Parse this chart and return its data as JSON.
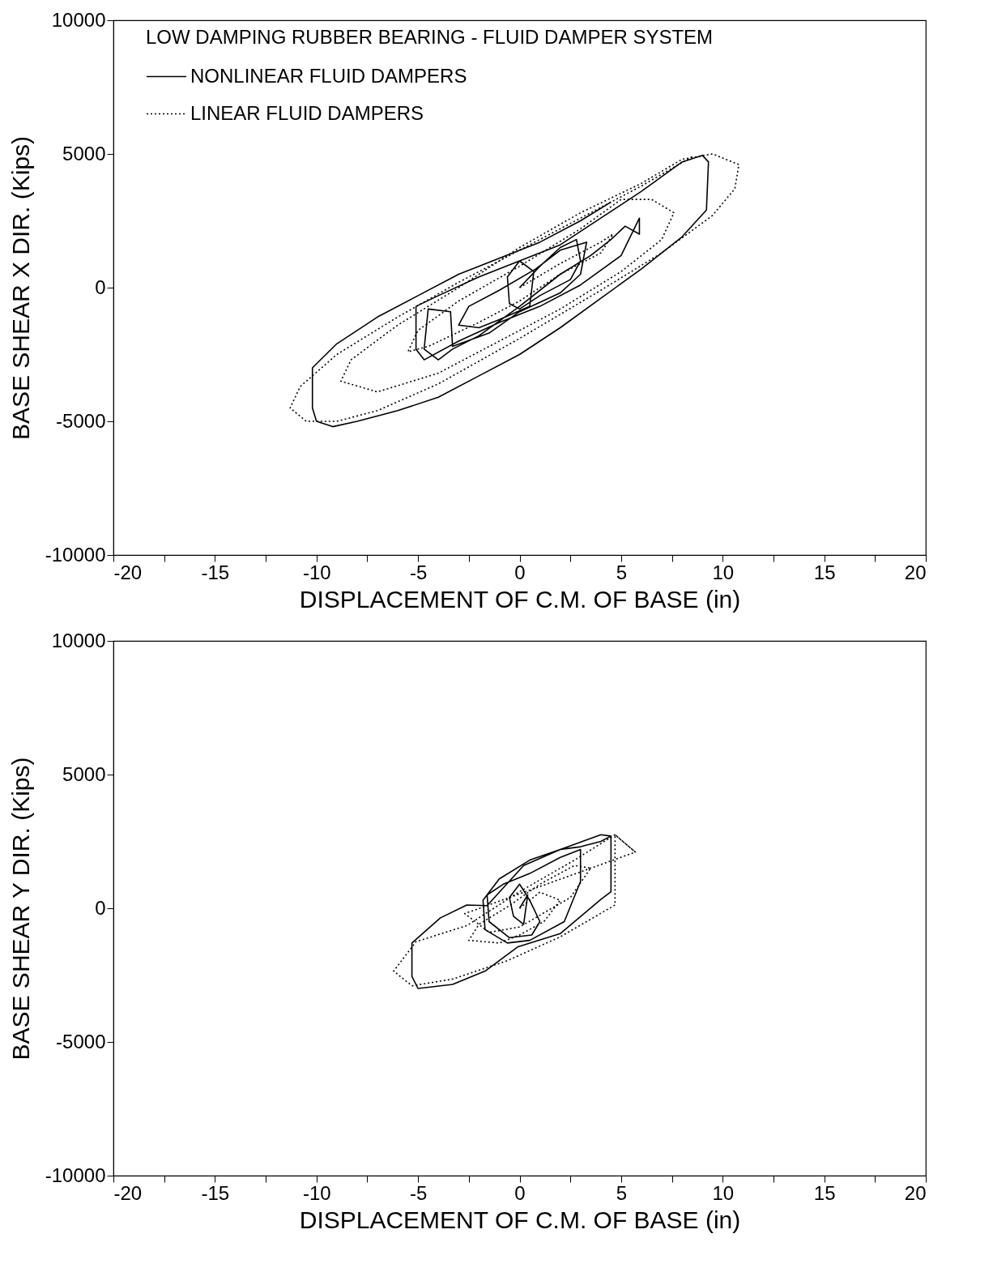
{
  "chart_data": [
    {
      "type": "line",
      "legend_title": "LOW DAMPING RUBBER BEARING - FLUID DAMPER SYSTEM",
      "legend": "top",
      "xlabel": "DISPLACEMENT  OF C.M. OF BASE (in)",
      "ylabel": "BASE SHEAR  X DIR. (Kips)",
      "xlim": [
        -20,
        20
      ],
      "ylim": [
        -10000,
        10000
      ],
      "xticks": [
        -20,
        {
          "value": -17.5,
          "label": null
        },
        -15,
        {
          "value": -12.5,
          "label": null
        },
        -10,
        {
          "value": -7.5,
          "label": null
        },
        -5,
        {
          "value": -2.5,
          "label": null
        },
        0,
        {
          "value": 2.5,
          "label": null
        },
        5,
        {
          "value": 7.5,
          "label": null
        },
        10,
        {
          "value": 12.5,
          "label": null
        },
        15,
        {
          "value": 17.5,
          "label": null
        },
        20
      ],
      "yticks": [
        -10000,
        -5000,
        0,
        5000,
        10000
      ],
      "grid": false,
      "marker": "none",
      "series": [
        {
          "name": "NONLINEAR FLUID DAMPERS",
          "color": "#000000",
          "line_style": "solid",
          "x": [
            0,
            1,
            2,
            2.8,
            3,
            2.5,
            1,
            0,
            -0.5,
            -0.6,
            0,
            0.7,
            0.5,
            -1,
            -2,
            -3,
            -2.5,
            -1,
            0.8,
            2,
            3.3,
            3,
            2,
            0,
            -1.5,
            -3.3,
            -3.4,
            -4.5,
            -4.7,
            -4,
            -3.3,
            -2,
            0,
            2,
            3.5,
            4.5,
            5.2,
            5.9,
            5.9,
            5,
            3,
            1,
            -1,
            -3,
            -4.7,
            -5.1,
            -5.1,
            -4,
            -2,
            0,
            2,
            4,
            6,
            8,
            9,
            9.3,
            9.2,
            8,
            6,
            4,
            2,
            0,
            -2,
            -4,
            -6,
            -8,
            -9.2,
            -10,
            -10.2,
            -10.2,
            -9,
            -7,
            -5,
            -3,
            -1,
            1,
            3,
            4.5
          ],
          "values": [
            0,
            800,
            1500,
            1800,
            1000,
            300,
            -300,
            -800,
            -600,
            400,
            1000,
            600,
            -700,
            -1200,
            -1500,
            -1400,
            -700,
            -100,
            700,
            1400,
            1700,
            500,
            -200,
            -900,
            -1700,
            -2200,
            -900,
            -800,
            -2300,
            -2700,
            -2300,
            -1800,
            -700,
            500,
            1200,
            1800,
            2300,
            2000,
            2600,
            1200,
            100,
            -700,
            -1300,
            -2000,
            -2700,
            -2300,
            -700,
            -300,
            400,
            1000,
            1600,
            2600,
            3600,
            4700,
            4950,
            4700,
            2900,
            1900,
            700,
            -400,
            -1500,
            -2500,
            -3300,
            -4100,
            -4600,
            -5000,
            -5200,
            -5000,
            -4500,
            -3000,
            -2100,
            -1100,
            -300,
            500,
            1100,
            1700,
            2500,
            3200
          ]
        },
        {
          "name": "LINEAR FLUID DAMPERS",
          "color": "#000000",
          "line_style": "dotted",
          "x": [
            0,
            2,
            4,
            4.6,
            4,
            2,
            0,
            -2,
            -4.5,
            -5.5,
            -5,
            -3,
            0,
            3,
            5,
            6.5,
            7.6,
            7,
            5,
            2,
            -1,
            -4,
            -7,
            -8.8,
            -8.3,
            -6,
            -3,
            0,
            3,
            6,
            8,
            9.5,
            10.8,
            10.6,
            9.5,
            7,
            4,
            0,
            -4,
            -7,
            -9,
            -10.5,
            -11.3,
            -10.8,
            -9,
            -6,
            -3,
            0,
            3,
            6,
            8.5
          ],
          "values": [
            0,
            900,
            1700,
            2000,
            1300,
            500,
            -500,
            -1300,
            -2200,
            -2400,
            -1600,
            -500,
            800,
            2200,
            3300,
            3300,
            2800,
            1800,
            600,
            -800,
            -2000,
            -3200,
            -3900,
            -3500,
            -2700,
            -1400,
            0,
            1500,
            2800,
            3900,
            4800,
            5000,
            4600,
            3700,
            2700,
            1300,
            -100,
            -1900,
            -3600,
            -4600,
            -5000,
            -5000,
            -4500,
            -3700,
            -2500,
            -1100,
            200,
            1400,
            2600,
            3800,
            4900
          ]
        }
      ]
    },
    {
      "type": "line",
      "legend": false,
      "xlabel": "DISPLACEMENT OF C.M. OF BASE (in)",
      "ylabel": "BASE SHEAR Y DIR. (Kips)",
      "xlim": [
        -20,
        20
      ],
      "ylim": [
        -10000,
        10000
      ],
      "xticks": [
        -20,
        {
          "value": -17.5,
          "label": null
        },
        -15,
        {
          "value": -12.5,
          "label": null
        },
        -10,
        {
          "value": -7.5,
          "label": null
        },
        -5,
        {
          "value": -2.5,
          "label": null
        },
        0,
        {
          "value": 2.5,
          "label": null
        },
        5,
        {
          "value": 7.5,
          "label": null
        },
        10,
        {
          "value": 12.5,
          "label": null
        },
        15,
        {
          "value": 17.5,
          "label": null
        },
        20
      ],
      "yticks": [
        -10000,
        -5000,
        0,
        5000,
        10000
      ],
      "grid": false,
      "marker": "none",
      "series": [
        {
          "color": "#000000",
          "line_style": "solid",
          "x": [
            0,
            0.4,
            0.2,
            -0.3,
            -0.5,
            0,
            0.5,
            1,
            0.6,
            -0.5,
            -1.5,
            -1.6,
            -0.8,
            0.5,
            2,
            3,
            3,
            2.2,
            0.5,
            -0.6,
            -1.7,
            -1.8,
            -1,
            0.5,
            2,
            3,
            4,
            4.5,
            4.5,
            4,
            2,
            -0.1,
            -1.7,
            -3.3,
            -5,
            -5.3,
            -5.3,
            -3.9,
            -2.6,
            -1.6,
            0.2,
            2,
            4,
            4.5
          ],
          "values": [
            0,
            500,
            -600,
            -300,
            400,
            900,
            300,
            -500,
            -1000,
            -1100,
            -500,
            500,
            900,
            1300,
            1900,
            2200,
            1000,
            -500,
            -1200,
            -1300,
            -800,
            300,
            1100,
            1800,
            2200,
            2300,
            2500,
            2700,
            620,
            330,
            -950,
            -1450,
            -2350,
            -2850,
            -3000,
            -2550,
            -1300,
            -360,
            120,
            100,
            1600,
            2200,
            2750,
            2700
          ]
        },
        {
          "color": "#000000",
          "line_style": "dotted",
          "x": [
            0,
            1,
            2,
            1.2,
            0,
            -1,
            -2.5,
            -2,
            -0.5,
            1,
            2.7,
            3.5,
            2.5,
            0,
            -1.5,
            -2.7,
            5.7,
            4.7,
            4.7,
            2,
            -0.6,
            -3.3,
            -5.3,
            -6.2,
            -5.1,
            -2.6,
            0,
            2.7,
            4.7,
            5.7
          ],
          "values": [
            0,
            600,
            300,
            -500,
            -1000,
            -1300,
            -1200,
            -600,
            100,
            900,
            1600,
            1500,
            400,
            -700,
            -900,
            -200,
            2100,
            2750,
            120,
            -1070,
            -1960,
            -2650,
            -2900,
            -2350,
            -1250,
            -650,
            620,
            1800,
            2750,
            2100
          ]
        }
      ]
    }
  ]
}
